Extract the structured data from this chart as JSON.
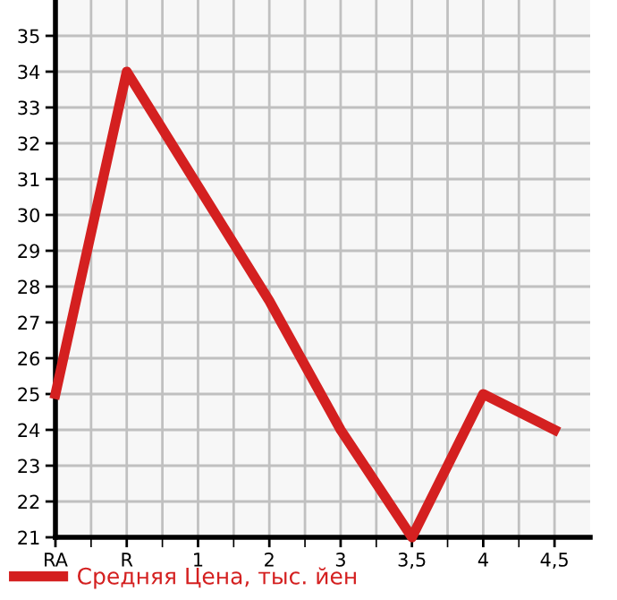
{
  "chart_data": {
    "type": "line",
    "categories": [
      "RA",
      "R",
      "1",
      "2",
      "3",
      "3,5",
      "4",
      "4,5"
    ],
    "series": [
      {
        "name": "Средняя Цена, тыс. йен",
        "color": "#d42020",
        "values": [
          25,
          34,
          30.8,
          27.6,
          24,
          21,
          25,
          24
        ]
      }
    ],
    "ylim": [
      21,
      36
    ],
    "yticks": [
      21,
      22,
      23,
      24,
      25,
      26,
      27,
      28,
      29,
      30,
      31,
      32,
      33,
      34,
      35
    ],
    "grid": true,
    "legend": "bottom",
    "marker": "none",
    "line_style": "solid"
  }
}
